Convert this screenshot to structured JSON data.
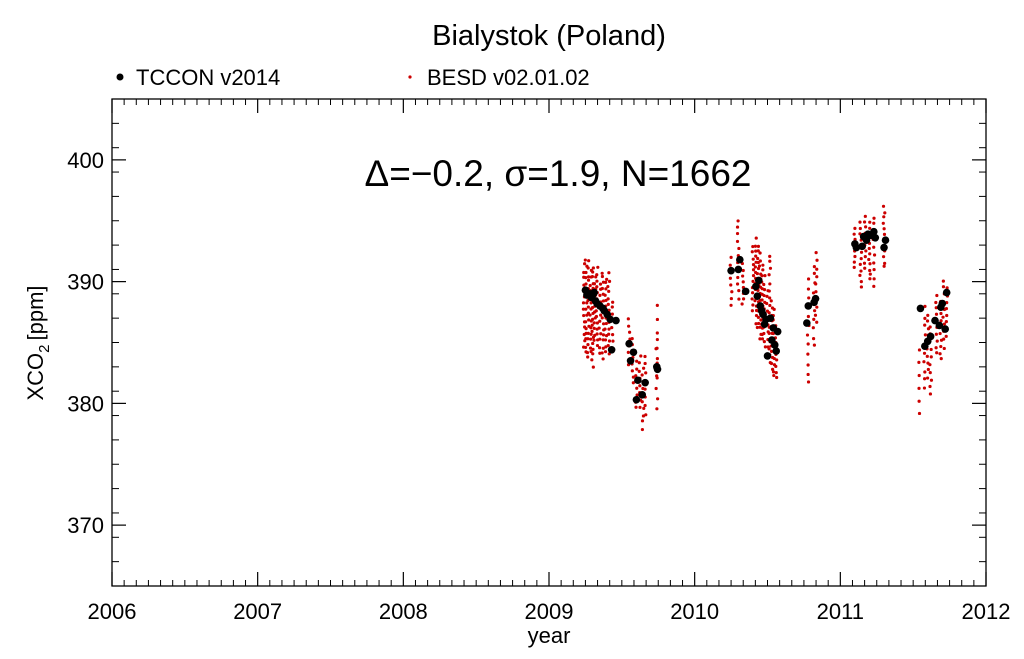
{
  "chart_data": {
    "type": "scatter",
    "title": "Bialystok (Poland)",
    "xlabel": "year",
    "ylabel": "XCO",
    "ylabel_subscript": "2",
    "ylabel_unit": "[ppm]",
    "annotation": "Δ=−0.2, σ=1.9, N=1662",
    "xlim": [
      2006,
      2012
    ],
    "ylim": [
      365,
      405
    ],
    "xticks": [
      2006,
      2007,
      2008,
      2009,
      2010,
      2011,
      2012
    ],
    "xtick_labels": [
      "2006",
      "2007",
      "2008",
      "2009",
      "2010",
      "2011",
      "2012"
    ],
    "yticks": [
      370,
      380,
      390,
      400
    ],
    "ytick_labels": [
      "370",
      "380",
      "390",
      "400"
    ],
    "grid": false,
    "legend_position": "top-left, above plot",
    "colors": {
      "tccon": "#000000",
      "besd": "#cc0000"
    },
    "series": [
      {
        "name": "TCCON v2014",
        "marker": "large-dot",
        "points": [
          [
            2009.25,
            389.3
          ],
          [
            2009.26,
            388.9
          ],
          [
            2009.28,
            389.0
          ],
          [
            2009.29,
            388.7
          ],
          [
            2009.3,
            388.9
          ],
          [
            2009.31,
            389.1
          ],
          [
            2009.32,
            388.4
          ],
          [
            2009.33,
            388.2
          ],
          [
            2009.35,
            388.0
          ],
          [
            2009.37,
            387.8
          ],
          [
            2009.38,
            387.6
          ],
          [
            2009.4,
            387.3
          ],
          [
            2009.42,
            386.9
          ],
          [
            2009.43,
            384.4
          ],
          [
            2009.46,
            386.8
          ],
          [
            2009.55,
            384.9
          ],
          [
            2009.56,
            383.5
          ],
          [
            2009.58,
            384.2
          ],
          [
            2009.6,
            380.3
          ],
          [
            2009.61,
            381.9
          ],
          [
            2009.64,
            380.7
          ],
          [
            2009.66,
            381.7
          ],
          [
            2009.74,
            383.0
          ],
          [
            2009.745,
            382.8
          ],
          [
            2010.25,
            390.9
          ],
          [
            2010.3,
            391.0
          ],
          [
            2010.31,
            391.8
          ],
          [
            2010.35,
            389.2
          ],
          [
            2010.42,
            389.6
          ],
          [
            2010.43,
            388.8
          ],
          [
            2010.44,
            390.1
          ],
          [
            2010.45,
            388.0
          ],
          [
            2010.46,
            387.6
          ],
          [
            2010.47,
            387.3
          ],
          [
            2010.48,
            386.5
          ],
          [
            2010.49,
            386.9
          ],
          [
            2010.5,
            383.9
          ],
          [
            2010.52,
            387.0
          ],
          [
            2010.53,
            385.2
          ],
          [
            2010.54,
            386.2
          ],
          [
            2010.55,
            384.8
          ],
          [
            2010.56,
            384.3
          ],
          [
            2010.57,
            385.9
          ],
          [
            2010.77,
            386.6
          ],
          [
            2010.78,
            388.0
          ],
          [
            2010.82,
            388.3
          ],
          [
            2010.83,
            388.6
          ],
          [
            2011.1,
            393.1
          ],
          [
            2011.11,
            392.8
          ],
          [
            2011.15,
            392.9
          ],
          [
            2011.16,
            393.7
          ],
          [
            2011.18,
            393.4
          ],
          [
            2011.19,
            393.9
          ],
          [
            2011.21,
            393.8
          ],
          [
            2011.23,
            394.1
          ],
          [
            2011.24,
            393.6
          ],
          [
            2011.3,
            392.8
          ],
          [
            2011.31,
            393.4
          ],
          [
            2011.55,
            387.8
          ],
          [
            2011.58,
            384.7
          ],
          [
            2011.6,
            385.1
          ],
          [
            2011.62,
            385.5
          ],
          [
            2011.65,
            386.8
          ],
          [
            2011.68,
            386.4
          ],
          [
            2011.69,
            387.9
          ],
          [
            2011.7,
            388.2
          ],
          [
            2011.72,
            386.1
          ],
          [
            2011.73,
            389.1
          ]
        ]
      },
      {
        "name": "BESD v02.01.02",
        "marker": "small-dot",
        "columns": [
          [
            2009.24,
            384.5,
            391.5,
            14
          ],
          [
            2009.255,
            384.0,
            392.0,
            16
          ],
          [
            2009.27,
            383.5,
            391.8,
            16
          ],
          [
            2009.285,
            384.0,
            391.0,
            14
          ],
          [
            2009.3,
            382.8,
            391.5,
            18
          ],
          [
            2009.315,
            385.0,
            390.5,
            12
          ],
          [
            2009.33,
            384.5,
            391.2,
            14
          ],
          [
            2009.35,
            384.0,
            390.0,
            12
          ],
          [
            2009.37,
            383.5,
            391.0,
            16
          ],
          [
            2009.39,
            384.0,
            390.5,
            14
          ],
          [
            2009.41,
            384.0,
            390.8,
            14
          ],
          [
            2009.435,
            384.5,
            388.5,
            8
          ],
          [
            2009.55,
            383.0,
            387.0,
            8
          ],
          [
            2009.575,
            381.5,
            385.5,
            8
          ],
          [
            2009.6,
            379.5,
            383.5,
            8
          ],
          [
            2009.625,
            379.5,
            384.0,
            8
          ],
          [
            2009.645,
            377.8,
            383.0,
            10
          ],
          [
            2009.66,
            379.0,
            384.0,
            8
          ],
          [
            2009.74,
            379.5,
            385.5,
            8
          ],
          [
            2009.745,
            382.0,
            388.3,
            6
          ],
          [
            2010.25,
            388.0,
            392.0,
            8
          ],
          [
            2010.3,
            388.5,
            395.2,
            12
          ],
          [
            2010.33,
            388.0,
            391.5,
            8
          ],
          [
            2010.4,
            387.5,
            393.0,
            12
          ],
          [
            2010.42,
            386.5,
            393.6,
            16
          ],
          [
            2010.435,
            386.0,
            393.0,
            16
          ],
          [
            2010.45,
            385.0,
            392.5,
            14
          ],
          [
            2010.465,
            385.0,
            391.5,
            14
          ],
          [
            2010.48,
            384.5,
            390.5,
            12
          ],
          [
            2010.5,
            384.0,
            389.5,
            10
          ],
          [
            2010.515,
            383.0,
            392.5,
            16
          ],
          [
            2010.53,
            382.5,
            388.5,
            12
          ],
          [
            2010.545,
            382.0,
            388.0,
            12
          ],
          [
            2010.56,
            382.0,
            386.5,
            10
          ],
          [
            2010.78,
            381.5,
            390.5,
            12
          ],
          [
            2010.82,
            384.5,
            391.5,
            10
          ],
          [
            2010.835,
            386.5,
            392.5,
            10
          ],
          [
            2011.1,
            391.0,
            394.5,
            8
          ],
          [
            2011.14,
            389.3,
            395.0,
            12
          ],
          [
            2011.17,
            391.0,
            395.5,
            10
          ],
          [
            2011.2,
            390.0,
            395.0,
            12
          ],
          [
            2011.23,
            389.5,
            395.5,
            10
          ],
          [
            2011.3,
            391.0,
            396.3,
            12
          ],
          [
            2011.54,
            379.0,
            384.5,
            6
          ],
          [
            2011.58,
            381.0,
            388.0,
            10
          ],
          [
            2011.6,
            382.0,
            387.5,
            10
          ],
          [
            2011.62,
            380.5,
            386.5,
            10
          ],
          [
            2011.66,
            384.0,
            389.0,
            10
          ],
          [
            2011.69,
            383.5,
            388.5,
            10
          ],
          [
            2011.71,
            384.5,
            390.3,
            10
          ],
          [
            2011.73,
            385.5,
            389.5,
            8
          ]
        ]
      }
    ]
  }
}
